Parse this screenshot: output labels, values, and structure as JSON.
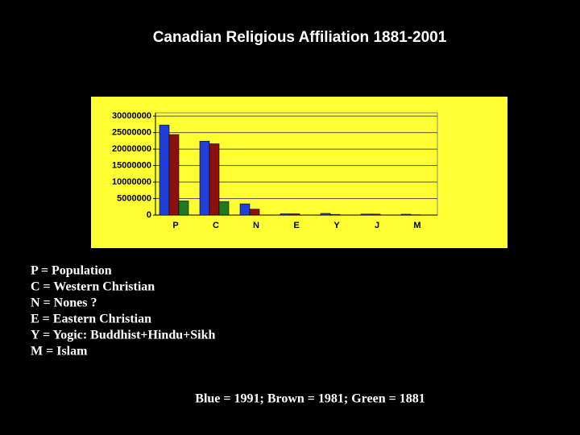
{
  "chart_data": {
    "type": "bar",
    "title": "Canadian Religious Affiliation 1881-2001",
    "categories": [
      "P",
      "C",
      "N",
      "E",
      "Y",
      "J",
      "M"
    ],
    "series": [
      {
        "color": "#1f3fd8",
        "values": [
          27300000,
          22400000,
          3400000,
          400000,
          500000,
          300000,
          250000
        ]
      },
      {
        "color": "#8b1010",
        "values": [
          24400000,
          21600000,
          1800000,
          400000,
          200000,
          300000,
          100000
        ]
      },
      {
        "color": "#1e7a1e",
        "values": [
          4300000,
          4100000,
          0,
          0,
          0,
          0,
          0
        ]
      }
    ],
    "ylim": [
      0,
      31000000
    ],
    "yticks": [
      0,
      5000000,
      10000000,
      15000000,
      20000000,
      25000000,
      30000000
    ],
    "grid": true,
    "background": "#ffff33",
    "notes": [
      "P = Population",
      "C = Western Christian",
      "N = Nones ?",
      "E = Eastern Christian",
      "Y = Yogic: Buddhist+Hindu+Sikh",
      "M = Islam"
    ],
    "caption": "Blue = 1991; Brown = 1981; Green = 1881"
  }
}
